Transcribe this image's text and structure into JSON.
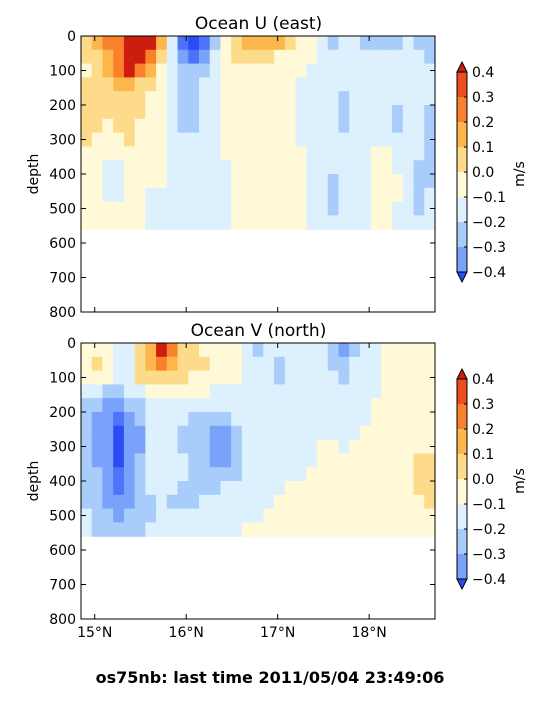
{
  "figure": {
    "suptitle": "os75nb: last time 2011/05/04 23:49:06"
  },
  "colorscale": {
    "levels": [
      -0.4,
      -0.3,
      -0.2,
      -0.1,
      0.0,
      0.1,
      0.2,
      0.3,
      0.4
    ],
    "colors": [
      "#2b4cf2",
      "#4c73fa",
      "#7aa2fb",
      "#a8cdfa",
      "#dcf0fd",
      "#fff9d8",
      "#fedb8a",
      "#fdb64c",
      "#f9812c",
      "#ed4d1c",
      "#cc1d0f"
    ],
    "tick_labels": [
      "0.4",
      "0.3",
      "0.2",
      "0.1",
      "0.0",
      "−0.1",
      "−0.2",
      "−0.3",
      "−0.4"
    ]
  },
  "chart_data": [
    {
      "type": "heatmap",
      "title": "Ocean U (east)",
      "xlabel": "",
      "ylabel": "depth",
      "colorbar_label": "m/s",
      "x_ticks": [
        "15°N",
        "16°N",
        "17°N",
        "18°N"
      ],
      "x_tick_values": [
        15,
        16,
        17,
        18
      ],
      "y_ticks": [
        "0",
        "100",
        "200",
        "300",
        "400",
        "500",
        "600",
        "700",
        "800"
      ],
      "xlim": [
        14.85,
        18.72
      ],
      "ylim": [
        800,
        0
      ],
      "grid": false,
      "sampled_grid": {
        "x_step": 0.12,
        "y_step": 40,
        "z_rows": [
          [
            0.12,
            0.2,
            0.3,
            0.35,
            0.42,
            0.45,
            0.42,
            0.2,
            -0.1,
            -0.35,
            -0.42,
            -0.35,
            -0.15,
            0.05,
            0.15,
            0.22,
            0.25,
            0.28,
            0.2,
            0.1,
            0.05,
            0.02,
            -0.05,
            -0.12,
            -0.1,
            -0.08,
            -0.12,
            -0.12,
            -0.12,
            -0.12,
            -0.1,
            -0.12,
            -0.12
          ],
          [
            0.1,
            0.18,
            0.28,
            0.35,
            0.42,
            0.45,
            0.38,
            0.12,
            -0.08,
            -0.3,
            -0.35,
            -0.25,
            -0.1,
            0.05,
            0.1,
            0.12,
            0.15,
            0.12,
            0.08,
            0.05,
            0.02,
            0.0,
            -0.05,
            -0.1,
            -0.08,
            -0.06,
            -0.1,
            -0.1,
            -0.1,
            -0.1,
            -0.08,
            -0.1,
            -0.12
          ],
          [
            0.08,
            0.15,
            0.22,
            0.32,
            0.4,
            0.35,
            0.25,
            0.05,
            -0.08,
            -0.15,
            -0.18,
            -0.12,
            -0.05,
            0.02,
            0.05,
            0.05,
            0.06,
            0.05,
            0.04,
            0.02,
            0.0,
            -0.02,
            -0.05,
            -0.08,
            -0.08,
            -0.06,
            -0.08,
            -0.08,
            -0.1,
            -0.1,
            -0.08,
            -0.1,
            -0.1
          ],
          [
            0.15,
            0.12,
            0.15,
            0.2,
            0.22,
            0.15,
            0.1,
            0.02,
            -0.08,
            -0.12,
            -0.14,
            -0.1,
            -0.04,
            0.0,
            0.02,
            0.02,
            0.03,
            0.02,
            0.02,
            0.0,
            -0.02,
            -0.02,
            -0.05,
            -0.08,
            -0.1,
            -0.06,
            -0.08,
            -0.08,
            -0.1,
            -0.1,
            -0.08,
            -0.1,
            -0.1
          ],
          [
            0.18,
            0.15,
            0.12,
            0.15,
            0.18,
            0.12,
            0.08,
            0.02,
            -0.06,
            -0.12,
            -0.14,
            -0.1,
            -0.03,
            0.0,
            0.0,
            0.02,
            0.02,
            0.02,
            0.0,
            0.0,
            -0.02,
            -0.02,
            -0.05,
            -0.08,
            -0.12,
            -0.08,
            -0.08,
            -0.08,
            -0.1,
            -0.1,
            -0.08,
            -0.1,
            -0.1
          ],
          [
            0.15,
            0.12,
            0.1,
            0.12,
            0.15,
            0.1,
            0.05,
            0.02,
            -0.05,
            -0.12,
            -0.13,
            -0.08,
            -0.03,
            0.0,
            0.0,
            0.02,
            0.02,
            0.02,
            0.0,
            0.0,
            -0.02,
            -0.02,
            -0.05,
            -0.1,
            -0.12,
            -0.08,
            -0.06,
            -0.06,
            -0.1,
            -0.12,
            -0.08,
            -0.1,
            -0.12
          ],
          [
            0.12,
            0.1,
            0.08,
            0.1,
            0.12,
            0.08,
            0.05,
            0.02,
            -0.04,
            -0.11,
            -0.12,
            -0.08,
            -0.02,
            0.0,
            0.0,
            0.02,
            0.02,
            0.05,
            0.02,
            0.0,
            -0.02,
            -0.02,
            -0.04,
            -0.1,
            -0.12,
            -0.08,
            -0.05,
            -0.05,
            -0.1,
            -0.12,
            -0.08,
            -0.1,
            -0.12
          ],
          [
            0.1,
            0.08,
            0.06,
            0.08,
            0.1,
            0.06,
            0.04,
            0.02,
            -0.03,
            -0.08,
            -0.1,
            -0.06,
            -0.02,
            0.0,
            0.0,
            0.02,
            0.05,
            0.06,
            0.05,
            0.02,
            -0.02,
            -0.02,
            -0.04,
            -0.08,
            -0.1,
            -0.08,
            -0.05,
            -0.05,
            -0.08,
            -0.1,
            -0.08,
            -0.1,
            -0.12
          ],
          [
            0.08,
            0.06,
            0.04,
            0.06,
            0.08,
            0.05,
            0.03,
            0.02,
            -0.02,
            -0.06,
            -0.08,
            -0.06,
            -0.02,
            0.0,
            0.0,
            0.02,
            0.05,
            0.06,
            0.05,
            0.02,
            0.0,
            -0.02,
            -0.04,
            -0.08,
            -0.1,
            -0.08,
            -0.05,
            0.05,
            0.05,
            -0.08,
            -0.08,
            -0.1,
            -0.12
          ],
          [
            0.08,
            0.05,
            -0.02,
            -0.08,
            0.05,
            0.03,
            0.02,
            0.01,
            -0.02,
            -0.05,
            -0.08,
            -0.05,
            -0.02,
            -0.02,
            0.0,
            0.02,
            0.05,
            0.06,
            0.05,
            0.02,
            0.0,
            -0.02,
            -0.04,
            -0.08,
            -0.1,
            -0.08,
            -0.05,
            0.05,
            0.05,
            -0.05,
            -0.08,
            -0.12,
            -0.15
          ],
          [
            0.05,
            0.02,
            -0.05,
            -0.08,
            0.02,
            0.02,
            0.02,
            0.01,
            -0.02,
            -0.05,
            -0.06,
            -0.05,
            -0.02,
            -0.02,
            0.0,
            0.02,
            0.05,
            0.06,
            0.05,
            0.02,
            0.0,
            -0.02,
            -0.04,
            -0.12,
            -0.1,
            -0.08,
            -0.05,
            0.05,
            0.05,
            0.02,
            -0.08,
            -0.15,
            -0.15
          ],
          [
            0.05,
            0.02,
            -0.02,
            -0.02,
            0.02,
            0.01,
            -0.1,
            -0.04,
            -0.02,
            -0.03,
            -0.05,
            -0.04,
            -0.02,
            -0.02,
            0.0,
            0.02,
            0.05,
            0.06,
            0.04,
            0.02,
            0.0,
            -0.02,
            -0.04,
            -0.15,
            -0.1,
            -0.08,
            -0.05,
            0.05,
            0.05,
            0.02,
            -0.08,
            -0.15,
            -0.1
          ],
          [
            0.05,
            0.02,
            0.0,
            0.0,
            0.01,
            0.0,
            -0.05,
            -0.05,
            -0.02,
            -0.02,
            -0.03,
            -0.03,
            -0.02,
            -0.02,
            0.0,
            0.02,
            0.04,
            0.05,
            0.03,
            0.02,
            0.0,
            -0.02,
            -0.04,
            -0.12,
            -0.1,
            -0.05,
            -0.03,
            0.02,
            0.02,
            -0.02,
            -0.08,
            -0.12,
            -0.08
          ],
          [
            0.05,
            0.02,
            0.0,
            0.0,
            0.0,
            0.0,
            -0.02,
            -0.02,
            -0.02,
            -0.02,
            -0.02,
            -0.02,
            -0.02,
            -0.02,
            0.0,
            0.02,
            0.02,
            0.02,
            0.02,
            0.0,
            0.0,
            -0.02,
            -0.04,
            -0.08,
            -0.06,
            -0.04,
            -0.02,
            0.02,
            0.02,
            -0.02,
            -0.05,
            -0.08,
            -0.06
          ]
        ]
      }
    },
    {
      "type": "heatmap",
      "title": "Ocean V (north)",
      "xlabel": "",
      "ylabel": "depth",
      "colorbar_label": "m/s",
      "x_ticks": [
        "15°N",
        "16°N",
        "17°N",
        "18°N"
      ],
      "x_tick_values": [
        15,
        16,
        17,
        18
      ],
      "y_ticks": [
        "0",
        "100",
        "200",
        "300",
        "400",
        "500",
        "600",
        "700",
        "800"
      ],
      "xlim": [
        14.85,
        18.72
      ],
      "ylim": [
        800,
        0
      ],
      "grid": false,
      "sampled_grid": {
        "x_step": 0.12,
        "y_step": 40,
        "z_rows": [
          [
            0.05,
            0.02,
            0.0,
            -0.05,
            -0.08,
            0.15,
            0.25,
            0.42,
            0.3,
            0.15,
            0.12,
            0.08,
            0.05,
            0.02,
            0.0,
            -0.05,
            -0.12,
            -0.08,
            -0.05,
            -0.02,
            -0.05,
            -0.08,
            -0.1,
            -0.12,
            -0.22,
            -0.12,
            -0.05,
            -0.02,
            0.0,
            0.02,
            0.02,
            0.02,
            0.02
          ],
          [
            0.05,
            0.1,
            0.05,
            -0.05,
            -0.08,
            0.18,
            0.28,
            0.35,
            0.25,
            0.18,
            0.15,
            0.1,
            0.05,
            0.02,
            0.0,
            -0.05,
            -0.1,
            -0.1,
            -0.12,
            -0.08,
            -0.05,
            -0.08,
            -0.1,
            -0.12,
            -0.18,
            -0.1,
            -0.05,
            -0.02,
            0.0,
            0.02,
            0.02,
            0.02,
            0.02
          ],
          [
            0.02,
            0.05,
            0.02,
            -0.05,
            -0.05,
            0.12,
            0.15,
            0.15,
            0.12,
            0.1,
            0.08,
            0.05,
            0.02,
            0.0,
            0.0,
            -0.05,
            -0.08,
            -0.1,
            -0.12,
            -0.1,
            -0.06,
            -0.08,
            -0.08,
            -0.1,
            -0.12,
            -0.08,
            -0.04,
            -0.02,
            0.0,
            0.02,
            0.02,
            0.02,
            0.02
          ],
          [
            -0.08,
            -0.1,
            -0.12,
            -0.12,
            -0.08,
            -0.05,
            0.02,
            0.02,
            0.02,
            0.0,
            0.0,
            0.0,
            -0.02,
            -0.02,
            -0.05,
            -0.05,
            -0.06,
            -0.08,
            -0.08,
            -0.06,
            -0.05,
            -0.06,
            -0.06,
            -0.08,
            -0.1,
            -0.06,
            -0.04,
            -0.02,
            0.0,
            0.02,
            0.05,
            0.02,
            0.02
          ],
          [
            -0.12,
            -0.18,
            -0.22,
            -0.25,
            -0.2,
            -0.15,
            -0.08,
            -0.05,
            -0.05,
            -0.05,
            -0.05,
            -0.05,
            -0.05,
            -0.05,
            -0.05,
            -0.05,
            -0.06,
            -0.08,
            -0.08,
            -0.06,
            -0.05,
            -0.05,
            -0.04,
            -0.05,
            -0.06,
            -0.04,
            -0.02,
            0.0,
            0.0,
            0.02,
            0.05,
            0.08,
            0.02
          ],
          [
            -0.15,
            -0.22,
            -0.28,
            -0.32,
            -0.25,
            -0.2,
            -0.1,
            -0.08,
            -0.08,
            -0.1,
            -0.12,
            -0.15,
            -0.14,
            -0.12,
            -0.08,
            -0.06,
            -0.06,
            -0.06,
            -0.06,
            -0.05,
            -0.04,
            -0.04,
            -0.04,
            -0.04,
            -0.05,
            -0.04,
            -0.02,
            0.0,
            0.0,
            0.02,
            0.05,
            0.08,
            0.02
          ],
          [
            -0.18,
            -0.25,
            -0.3,
            -0.45,
            -0.28,
            -0.22,
            -0.1,
            -0.1,
            -0.1,
            -0.12,
            -0.15,
            -0.2,
            -0.25,
            -0.25,
            -0.15,
            -0.08,
            -0.06,
            -0.05,
            -0.05,
            -0.04,
            -0.03,
            -0.02,
            -0.02,
            -0.02,
            -0.03,
            -0.02,
            0.0,
            0.0,
            0.0,
            0.02,
            0.05,
            0.08,
            0.05
          ],
          [
            -0.18,
            -0.25,
            -0.3,
            -0.45,
            -0.28,
            -0.22,
            -0.1,
            -0.1,
            -0.1,
            -0.12,
            -0.15,
            -0.2,
            -0.28,
            -0.28,
            -0.18,
            -0.1,
            -0.06,
            -0.05,
            -0.04,
            -0.03,
            -0.02,
            -0.02,
            0.0,
            0.0,
            -0.02,
            0.0,
            0.0,
            0.0,
            0.0,
            0.02,
            0.05,
            0.08,
            0.05
          ],
          [
            -0.18,
            -0.22,
            -0.28,
            -0.45,
            -0.3,
            -0.2,
            -0.1,
            -0.08,
            -0.08,
            -0.1,
            -0.12,
            -0.18,
            -0.22,
            -0.22,
            -0.15,
            -0.1,
            -0.06,
            -0.05,
            -0.04,
            -0.02,
            -0.02,
            -0.02,
            0.0,
            0.0,
            0.0,
            0.0,
            0.0,
            0.0,
            0.02,
            0.02,
            0.05,
            0.1,
            0.15
          ],
          [
            -0.15,
            -0.2,
            -0.28,
            -0.32,
            -0.28,
            -0.18,
            -0.1,
            -0.08,
            -0.08,
            -0.1,
            -0.12,
            -0.15,
            -0.18,
            -0.15,
            -0.12,
            -0.08,
            -0.05,
            -0.04,
            -0.02,
            -0.02,
            -0.02,
            0.0,
            0.0,
            0.0,
            0.0,
            0.0,
            0.0,
            0.0,
            0.02,
            0.02,
            0.05,
            0.12,
            0.18
          ],
          [
            -0.15,
            -0.2,
            -0.28,
            -0.32,
            -0.25,
            -0.18,
            -0.1,
            -0.08,
            -0.1,
            -0.12,
            -0.15,
            -0.15,
            -0.12,
            -0.1,
            -0.08,
            -0.05,
            -0.04,
            -0.02,
            -0.02,
            0.0,
            0.0,
            0.0,
            0.0,
            0.0,
            0.0,
            0.0,
            0.0,
            0.0,
            0.02,
            0.02,
            0.05,
            0.1,
            0.18
          ],
          [
            -0.12,
            -0.18,
            -0.22,
            -0.28,
            -0.22,
            -0.15,
            -0.12,
            -0.1,
            -0.12,
            -0.15,
            -0.12,
            -0.1,
            -0.08,
            -0.06,
            -0.05,
            -0.04,
            -0.02,
            -0.02,
            0.0,
            0.0,
            0.0,
            0.0,
            0.02,
            0.0,
            0.0,
            0.0,
            0.0,
            0.0,
            0.02,
            0.02,
            0.05,
            0.08,
            0.1
          ],
          [
            -0.1,
            -0.15,
            -0.2,
            -0.22,
            -0.2,
            -0.15,
            -0.12,
            -0.1,
            -0.08,
            -0.08,
            -0.06,
            -0.05,
            -0.04,
            -0.03,
            -0.02,
            -0.02,
            -0.02,
            0.0,
            0.0,
            0.0,
            0.0,
            0.0,
            0.02,
            0.02,
            0.0,
            0.0,
            0.0,
            0.0,
            0.02,
            0.02,
            0.05,
            0.05,
            0.05
          ],
          [
            -0.08,
            -0.12,
            -0.15,
            -0.2,
            -0.18,
            -0.12,
            -0.08,
            -0.06,
            -0.05,
            -0.04,
            -0.03,
            -0.02,
            -0.02,
            -0.02,
            -0.02,
            0.0,
            0.0,
            0.0,
            0.0,
            0.0,
            0.0,
            0.0,
            0.02,
            0.02,
            0.0,
            0.0,
            0.0,
            0.0,
            0.02,
            0.02,
            0.02,
            0.02,
            0.02
          ]
        ]
      }
    }
  ]
}
